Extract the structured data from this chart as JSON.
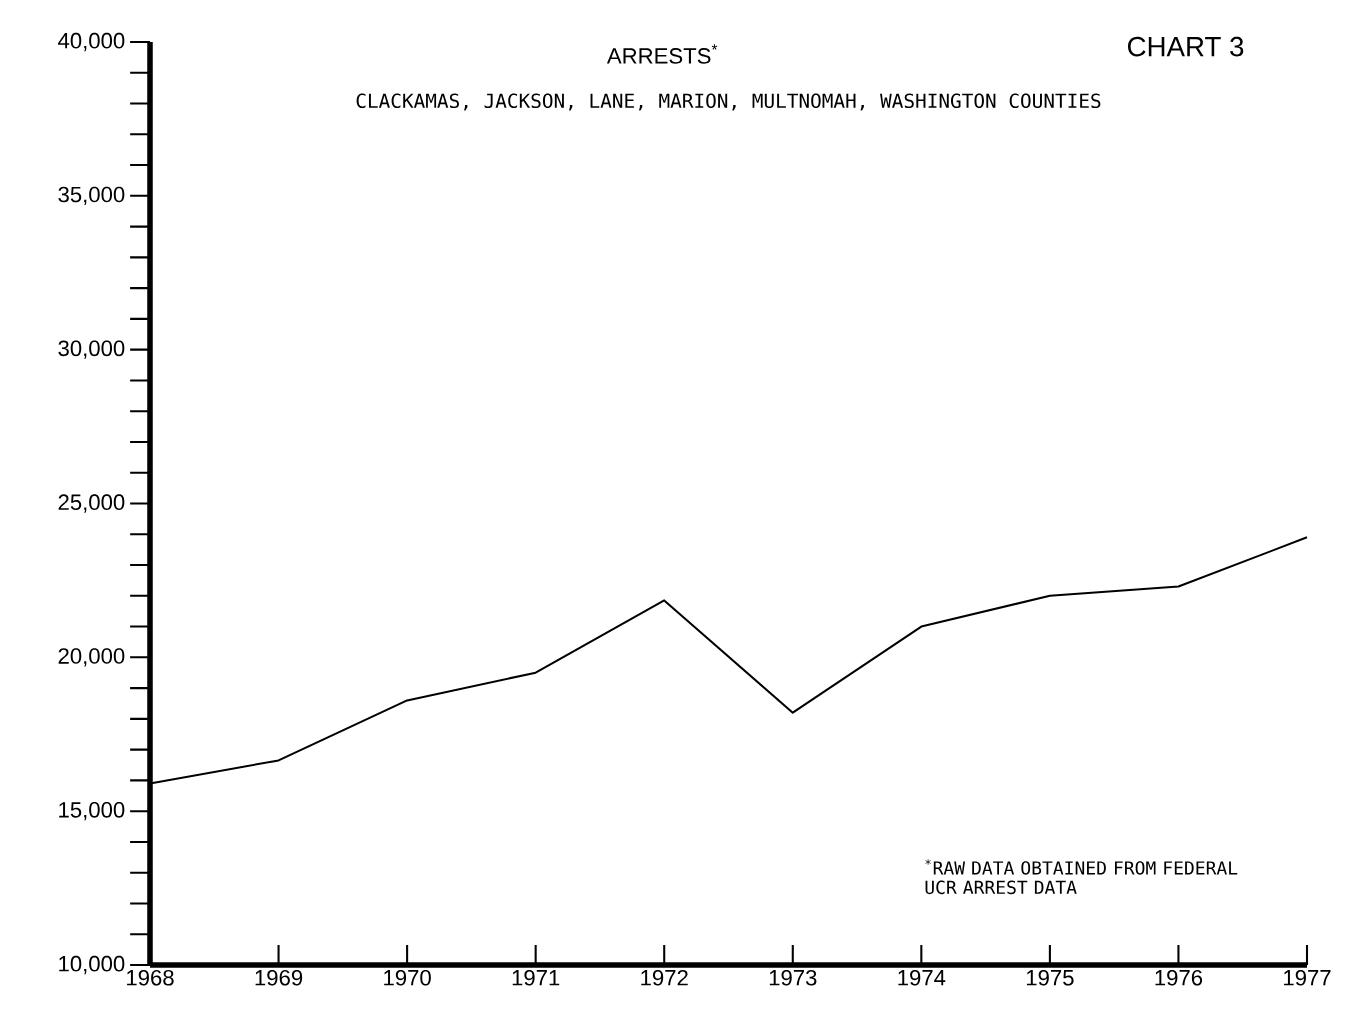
{
  "chart_data": {
    "type": "line",
    "title": "ARRESTS$^{*}$",
    "subtitle": "CLACKAMAS, JACKSON, LANE, MARION, MULTNOMAH, WASHINGTON COUNTIES",
    "annotations": [
      "CHART 3",
      "$^{*}$RAW DATA OBTAINED FROM FEDERAL UCR ARREST DATA"
    ],
    "x": [
      1968,
      1969,
      1970,
      1971,
      1972,
      1973,
      1974,
      1975,
      1976,
      1977
    ],
    "values": [
      15900,
      16650,
      18600,
      19500,
      21850,
      18200,
      21000,
      22000,
      22300,
      23900
    ],
    "color": "#000000",
    "xlim": [
      1968,
      1977
    ],
    "xticks": [
      1968,
      1969,
      1970,
      1971,
      1972,
      1973,
      1974,
      1975,
      1976,
      1977
    ],
    "ylim": [
      10000,
      40000
    ],
    "yticks": [
      {
        "value": 10000,
        "label": "10,000"
      },
      {
        "value": 15000,
        "label": "15,000"
      },
      {
        "value": 20000,
        "label": "20,000"
      },
      {
        "value": 25000,
        "label": "25,000"
      },
      {
        "value": 30000,
        "label": "30,000"
      },
      {
        "value": 35000,
        "label": "35,000"
      },
      {
        "value": 40000,
        "label": "40,000"
      }
    ]
  }
}
